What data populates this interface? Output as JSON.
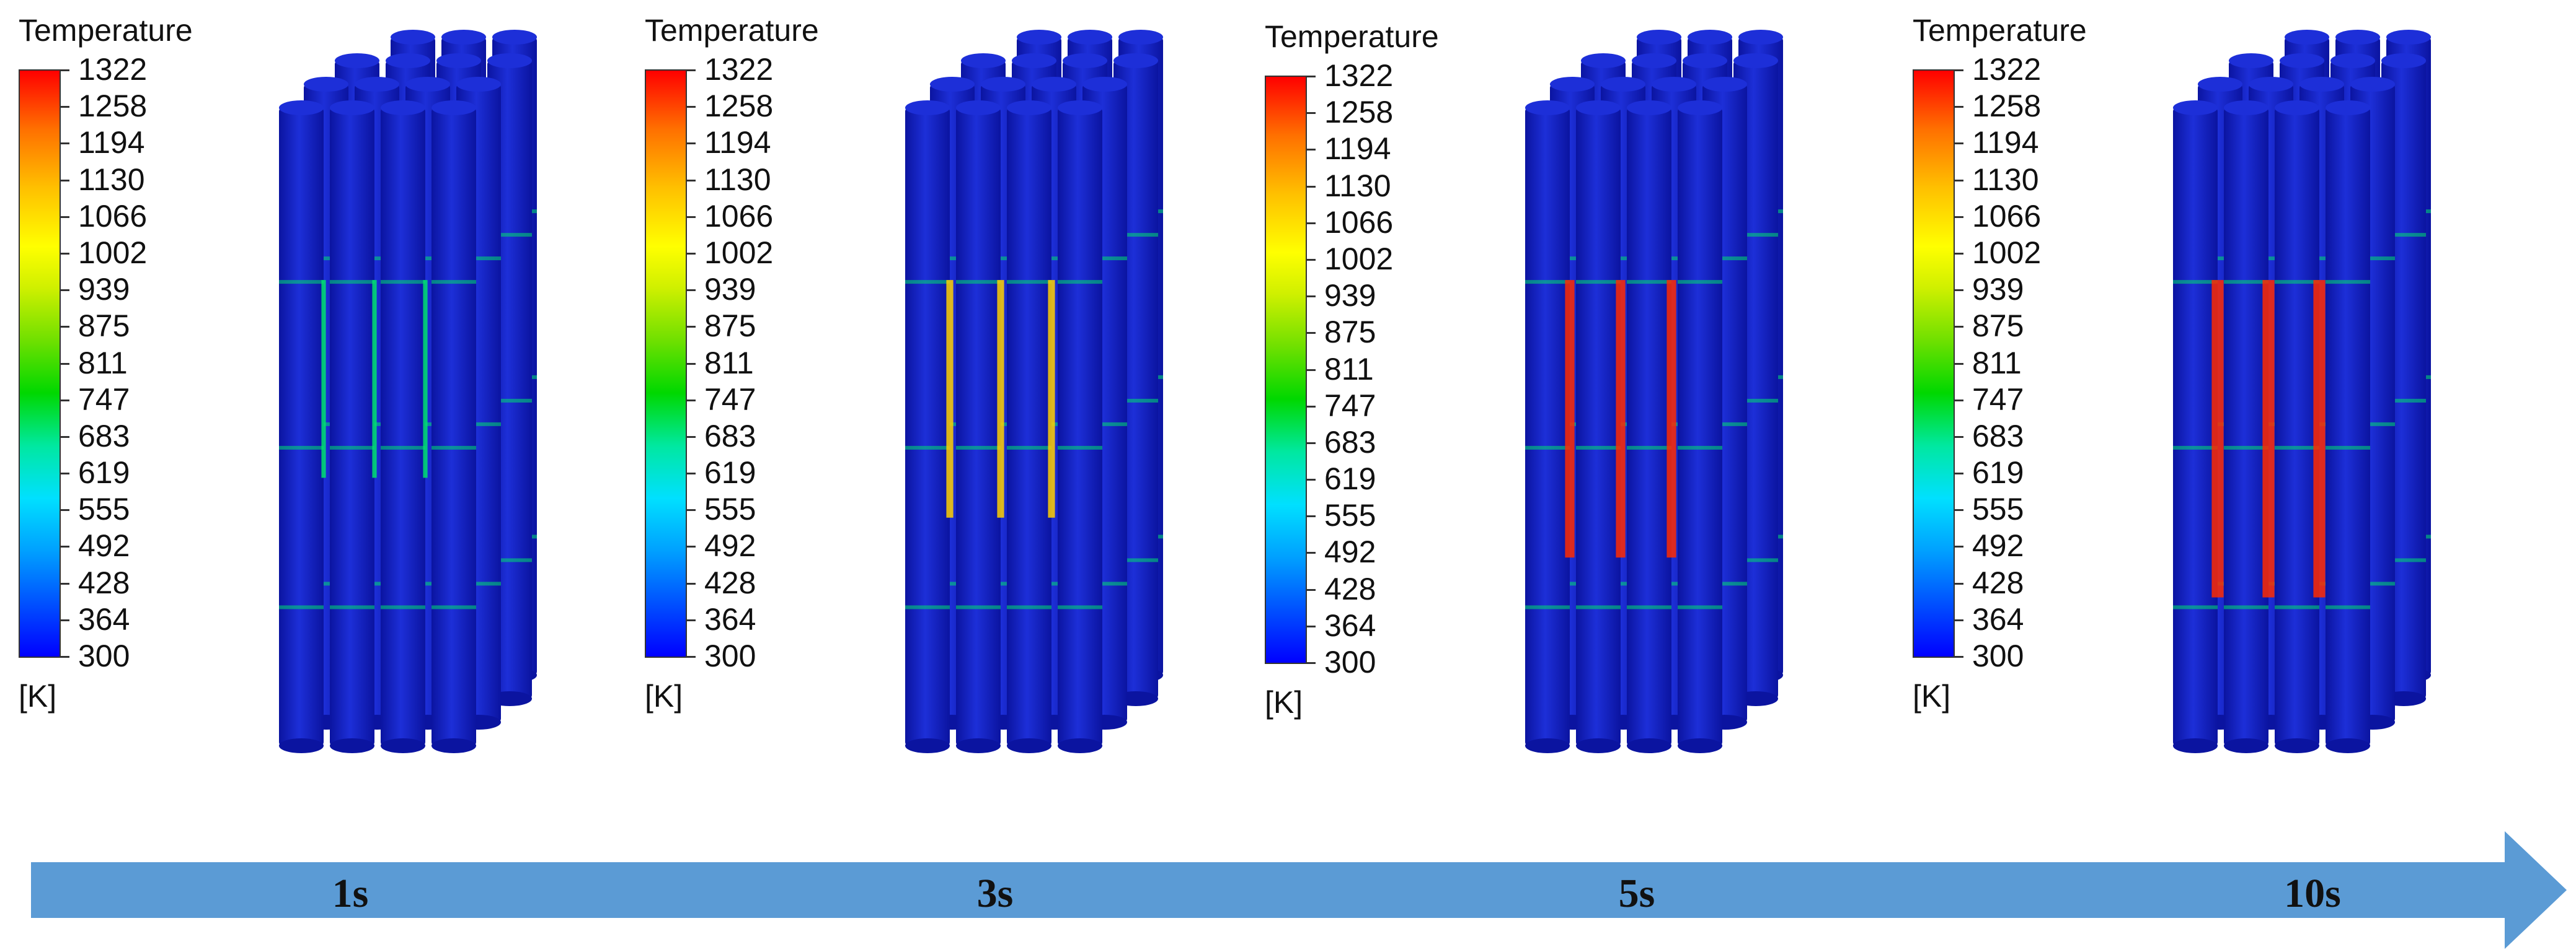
{
  "legend": {
    "title": "Temperature",
    "unit": "[K]",
    "ticks": [
      "1322",
      "1258",
      "1194",
      "1130",
      "1066",
      "1002",
      "939",
      "875",
      "811",
      "747",
      "683",
      "619",
      "555",
      "492",
      "428",
      "364",
      "300"
    ]
  },
  "panels": [
    {
      "time": "1s",
      "heat": 0.2
    },
    {
      "time": "3s",
      "heat": 0.45
    },
    {
      "time": "5s",
      "heat": 0.7
    },
    {
      "time": "10s",
      "heat": 0.95
    }
  ],
  "colors": {
    "rod": "#1d2fd8",
    "rod_dark": "#0b14a0",
    "arrow": "#5b9bd5",
    "hot": "#ff2a00",
    "warm": "#ffd000",
    "cool": "#00e070"
  }
}
